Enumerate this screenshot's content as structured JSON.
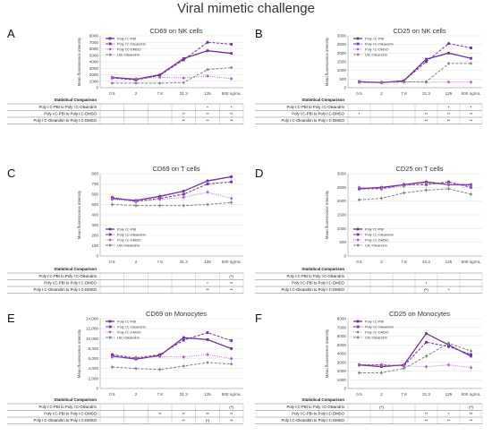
{
  "figure": {
    "title": "Viral mimetic challenge"
  },
  "series_styles": [
    {
      "key": "pbi",
      "name": "Poly I:C-PBI",
      "color": "#7030a0",
      "dash": "",
      "marker": "square",
      "width": 1.3
    },
    {
      "key": "ole",
      "name": "Poly I:C-Oleandrin",
      "color": "#7030a0",
      "dash": "3,1.6",
      "marker": "square",
      "width": 1.0
    },
    {
      "key": "dmso",
      "name": "Poly I:C-DMSO",
      "color": "#b05cd0",
      "dash": "0.8,1.2",
      "marker": "circle",
      "width": 0.9
    },
    {
      "key": "uic",
      "name": "UIC-Oleandrin",
      "color": "#808080",
      "dash": "3,1.6",
      "marker": "diamond",
      "width": 1.0
    }
  ],
  "stats_header": "Statistical Comparison",
  "chart_data": [
    {
      "letter": "A",
      "type": "line",
      "title": "CD69 on NK cells",
      "ylabel": "Mean fluorescence intensity",
      "xlabel": "",
      "categories": [
        "0.5",
        "2",
        "7.8",
        "31.3",
        "125",
        "500 ng/mL"
      ],
      "ylim": [
        0,
        8000
      ],
      "yticks": [
        0,
        1000,
        2000,
        3000,
        4000,
        5000,
        6000,
        7000,
        8000
      ],
      "ytick_labels": [
        "0",
        "1000",
        "2000",
        "3000",
        "4000",
        "5000",
        "6000",
        "7000",
        "8000"
      ],
      "legend": "top-left",
      "series": [
        {
          "name": "Poly I:C-PBI",
          "values": [
            1600,
            1300,
            2000,
            4500,
            5700,
            5300
          ]
        },
        {
          "name": "Poly I:C-Oleandrin",
          "values": [
            1500,
            1200,
            1900,
            4300,
            7000,
            6700
          ]
        },
        {
          "name": "Poly I:C-DMSO",
          "values": [
            1600,
            1400,
            1600,
            1500,
            1800,
            1400
          ]
        },
        {
          "name": "UIC-Oleandrin",
          "values": [
            700,
            700,
            700,
            800,
            2800,
            3100
          ]
        }
      ],
      "stats": [
        {
          "label": "Poly I:C-PBI to Poly I:C-Oleandrin",
          "marks": [
            "",
            "",
            "",
            "",
            "*",
            "*"
          ]
        },
        {
          "label": "Poly I:C-PBI to Poly I:C-DMSO",
          "marks": [
            "",
            "",
            "",
            "**",
            "**",
            "**"
          ]
        },
        {
          "label": "Poly I:C-Oleandrin to Poly I:C-DMSO",
          "marks": [
            "",
            "",
            "",
            "**",
            "**",
            "**"
          ]
        }
      ]
    },
    {
      "letter": "B",
      "type": "line",
      "title": "CD25 on NK cells",
      "ylabel": "Mean fluorescence intensity",
      "xlabel": "",
      "categories": [
        "0.5",
        "2",
        "7.8",
        "31.3",
        "125",
        "500 ng/mL"
      ],
      "ylim": [
        0,
        3000
      ],
      "yticks": [
        0,
        500,
        1000,
        1500,
        2000,
        2500,
        3000
      ],
      "ytick_labels": [
        "0",
        "500",
        "1000",
        "1500",
        "2000",
        "2500",
        "3000"
      ],
      "legend": "top-left",
      "series": [
        {
          "name": "Poly I:C-PBI",
          "values": [
            350,
            300,
            400,
            1650,
            2000,
            1700
          ]
        },
        {
          "name": "Poly I:C-Oleandrin",
          "values": [
            350,
            300,
            400,
            1500,
            2550,
            2300
          ]
        },
        {
          "name": "Poly I:C-DMSO",
          "values": [
            330,
            330,
            330,
            320,
            330,
            330
          ]
        },
        {
          "name": "UIC-Oleandrin",
          "values": [
            300,
            300,
            330,
            350,
            1400,
            1400
          ]
        }
      ],
      "stats": [
        {
          "label": "Poly I:C-PBI to Poly I:C-Oleandrin",
          "marks": [
            "",
            "",
            "",
            "",
            "*",
            "*"
          ]
        },
        {
          "label": "Poly I:C-PBI to Poly I:C-DMSO",
          "marks": [
            "*",
            "",
            "",
            "**",
            "**",
            "**"
          ]
        },
        {
          "label": "Poly I:C-Oleandrin to Poly I:C-DMSO",
          "marks": [
            "",
            "",
            "",
            "**",
            "**",
            "**"
          ]
        }
      ]
    },
    {
      "letter": "C",
      "type": "line",
      "title": "CD69 on T cells",
      "ylabel": "Mean fluorescence intensity",
      "xlabel": "",
      "categories": [
        "0.5",
        "2",
        "7.8",
        "31.3",
        "125",
        "500 ng/mL"
      ],
      "ylim": [
        0,
        800
      ],
      "yticks": [
        0,
        100,
        200,
        300,
        400,
        500,
        600,
        700,
        800
      ],
      "ytick_labels": [
        "0",
        "100",
        "200",
        "300",
        "400",
        "500",
        "600",
        "700",
        "800"
      ],
      "legend": "bottom-left",
      "series": [
        {
          "name": "Poly I:C-PBI",
          "values": [
            560,
            540,
            580,
            630,
            730,
            770
          ]
        },
        {
          "name": "Poly I:C-Oleandrin",
          "values": [
            570,
            530,
            560,
            600,
            700,
            720
          ]
        },
        {
          "name": "Poly I:C-DMSO",
          "values": [
            550,
            530,
            550,
            570,
            620,
            560
          ]
        },
        {
          "name": "UIC-Oleandrin",
          "values": [
            500,
            490,
            490,
            490,
            500,
            520
          ]
        }
      ],
      "stats": [
        {
          "label": "Poly I:C-PBI to Poly I:C-Oleandrin",
          "marks": [
            "",
            "",
            "",
            "",
            "",
            "(*)"
          ]
        },
        {
          "label": "Poly I:C-PBI to Poly I:C-DMSO",
          "marks": [
            "",
            "",
            "",
            "",
            "*",
            "**"
          ]
        },
        {
          "label": "Poly I:C-Oleandrin to Poly I:C-DMSO",
          "marks": [
            "",
            "",
            "",
            "",
            "**",
            "**"
          ]
        }
      ]
    },
    {
      "letter": "D",
      "type": "line",
      "title": "CD25 on T cells",
      "ylabel": "Mean fluorescence intensity",
      "xlabel": "",
      "categories": [
        "0.5",
        "2",
        "7.8",
        "31.3",
        "125",
        "500 ng/mL"
      ],
      "ylim": [
        0,
        3000
      ],
      "yticks": [
        0,
        500,
        1000,
        1500,
        2000,
        2500,
        3000
      ],
      "ytick_labels": [
        "0",
        "500",
        "1000",
        "1500",
        "2000",
        "2500",
        "3000"
      ],
      "legend": "bottom-left",
      "series": [
        {
          "name": "Poly I:C-PBI",
          "values": [
            2450,
            2500,
            2600,
            2700,
            2600,
            2600
          ]
        },
        {
          "name": "Poly I:C-Oleandrin",
          "values": [
            2450,
            2450,
            2600,
            2600,
            2700,
            2500
          ]
        },
        {
          "name": "Poly I:C-DMSO",
          "values": [
            2500,
            2450,
            2550,
            2650,
            2600,
            2550
          ]
        },
        {
          "name": "UIC-Oleandrin",
          "values": [
            2050,
            2100,
            2300,
            2400,
            2450,
            2250
          ]
        }
      ],
      "stats": [
        {
          "label": "Poly I:C-PBI to Poly I:C-Oleandrin",
          "marks": [
            "",
            "",
            "",
            "",
            "",
            ""
          ]
        },
        {
          "label": "Poly I:C-PBI to Poly I:C-DMSO",
          "marks": [
            "",
            "",
            "",
            "*",
            "",
            ""
          ]
        },
        {
          "label": "Poly I:C-Oleandrin to Poly I:C-DMSO",
          "marks": [
            "",
            "",
            "",
            "(*)",
            "*",
            ""
          ]
        }
      ]
    },
    {
      "letter": "E",
      "type": "line",
      "title": "CD69 on Monocytes",
      "ylabel": "Mean fluorescence intensity",
      "xlabel": "",
      "categories": [
        "0.5",
        "2",
        "7.8",
        "31.3",
        "125",
        "500 ng/mL"
      ],
      "ylim": [
        0,
        14000
      ],
      "yticks": [
        0,
        2000,
        4000,
        6000,
        8000,
        10000,
        12000,
        14000
      ],
      "ytick_labels": [
        "0",
        "2,000",
        "4,000",
        "6,000",
        "8,000",
        "10,000",
        "12,000",
        "14,000"
      ],
      "legend": "top-left",
      "series": [
        {
          "name": "Poly I:C-PBI",
          "values": [
            6500,
            5900,
            6600,
            10200,
            9800,
            8000
          ]
        },
        {
          "name": "Poly I:C-Oleandrin",
          "values": [
            6800,
            6100,
            6800,
            9700,
            11200,
            9600
          ]
        },
        {
          "name": "Poly I:C-DMSO",
          "values": [
            6300,
            6200,
            6400,
            6300,
            6800,
            6000
          ]
        },
        {
          "name": "UIC-Oleandrin",
          "values": [
            4300,
            4000,
            3800,
            4500,
            5200,
            4900
          ]
        }
      ],
      "stats": [
        {
          "label": "Poly I:C-PBI to Poly I:C-Oleandrin",
          "marks": [
            "",
            "",
            "",
            "",
            "",
            "(*)"
          ]
        },
        {
          "label": "Poly I:C-PBI to Poly I:C-DMSO",
          "marks": [
            "",
            "",
            "**",
            "**",
            "**",
            "**"
          ]
        },
        {
          "label": "Poly I:C-Oleandrin to Poly I:C-DMSO",
          "marks": [
            "",
            "",
            "",
            "**",
            "(*)",
            "**"
          ]
        }
      ]
    },
    {
      "letter": "F",
      "type": "line",
      "title": "CD25 on Monocytes",
      "ylabel": "Mean fluorescence intensity",
      "xlabel": "",
      "categories": [
        "0.5",
        "2",
        "7.8",
        "31.3",
        "125",
        "500 ng/mL"
      ],
      "ylim": [
        0,
        8000
      ],
      "yticks": [
        0,
        1000,
        2000,
        3000,
        4000,
        5000,
        6000,
        7000,
        8000
      ],
      "ytick_labels": [
        "0",
        "1000",
        "2000",
        "3000",
        "4000",
        "5000",
        "6000",
        "7000",
        "8000"
      ],
      "legend": "top-left",
      "series": [
        {
          "name": "Poly I:C-PBI",
          "values": [
            2700,
            2500,
            2700,
            6300,
            5000,
            3700
          ]
        },
        {
          "name": "Poly I:C-Oleandrin",
          "values": [
            2700,
            2700,
            2600,
            5300,
            4800,
            3900
          ]
        },
        {
          "name": "Poly I:C-DMSO",
          "values": [
            2700,
            2700,
            2600,
            2500,
            2700,
            2400
          ]
        },
        {
          "name": "UIC-Oleandrin",
          "values": [
            1800,
            1800,
            2300,
            3700,
            5200,
            4300
          ]
        }
      ],
      "stats": [
        {
          "label": "Poly I:C-PBI to Poly I:C-Oleandrin",
          "marks": [
            "",
            "(*)",
            "",
            "",
            "",
            "(*)"
          ]
        },
        {
          "label": "Poly I:C-PBI to Poly I:C-DMSO",
          "marks": [
            "",
            "",
            "",
            "**",
            "*",
            "**"
          ]
        },
        {
          "label": "Poly I:C-Oleandrin to Poly I:C-DMSO",
          "marks": [
            "",
            "",
            "",
            "**",
            "**",
            "**"
          ]
        }
      ]
    }
  ]
}
